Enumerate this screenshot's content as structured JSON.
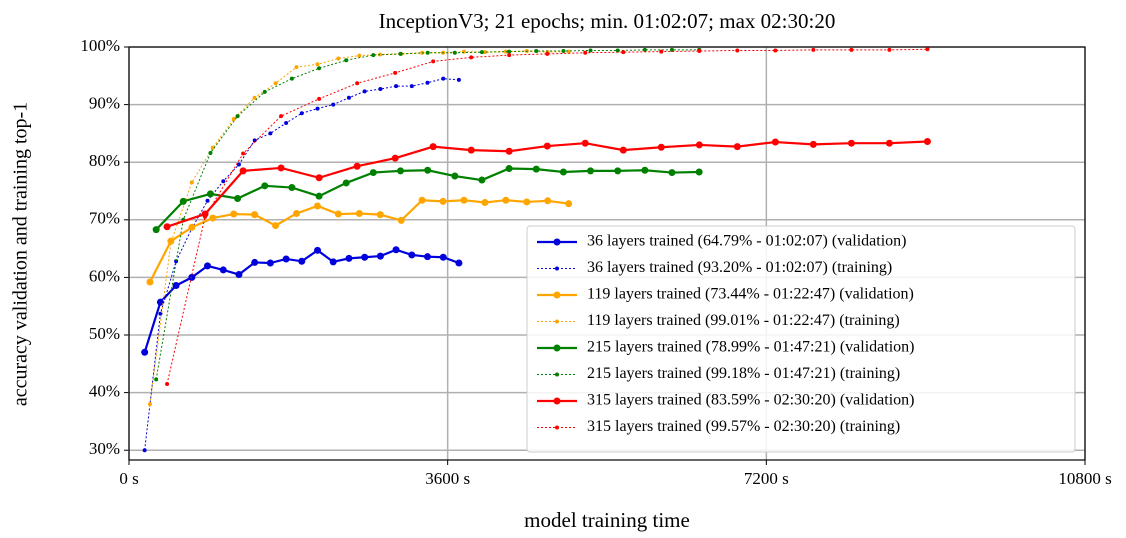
{
  "chart_data": {
    "type": "line",
    "title": "InceptionV3; 21 epochs; min. 01:02:07; max 02:30:20",
    "xlabel": "model training time",
    "ylabel": "accuracy validation and training top-1",
    "xlim": [
      0,
      10800
    ],
    "xticks": [
      {
        "value": 0,
        "label": "0 s"
      },
      {
        "value": 3600,
        "label": "3600 s"
      },
      {
        "value": 7200,
        "label": "7200 s"
      },
      {
        "value": 10800,
        "label": "10800 s"
      }
    ],
    "ylim": [
      28.3,
      100
    ],
    "yticks": [
      {
        "value": 30,
        "label": "30%"
      },
      {
        "value": 40,
        "label": "40%"
      },
      {
        "value": 50,
        "label": "50%"
      },
      {
        "value": 60,
        "label": "60%"
      },
      {
        "value": 70,
        "label": "70%"
      },
      {
        "value": 80,
        "label": "80%"
      },
      {
        "value": 90,
        "label": "90%"
      },
      {
        "value": 100,
        "label": "100%"
      }
    ],
    "grid": true,
    "legend": "lower right",
    "series": [
      {
        "name": "36 layers trained (64.79% - 01:02:07) (validation)",
        "color": "#0000dd",
        "linestyle": "solid",
        "x": [
          177,
          355,
          532,
          710,
          887,
          1065,
          1242,
          1420,
          1597,
          1775,
          1952,
          2130,
          2307,
          2485,
          2662,
          2840,
          3017,
          3195,
          3372,
          3550,
          3727
        ],
        "values": [
          47,
          55.7,
          58.6,
          60,
          62,
          61.3,
          60.5,
          62.6,
          62.5,
          63.2,
          62.8,
          64.7,
          62.7,
          63.3,
          63.5,
          63.7,
          64.8,
          63.9,
          63.6,
          63.5,
          62.5
        ]
      },
      {
        "name": "36 layers trained (93.20% - 01:02:07) (training)",
        "color": "#0000dd",
        "linestyle": "dotted",
        "x": [
          177,
          355,
          532,
          710,
          887,
          1065,
          1242,
          1420,
          1597,
          1775,
          1952,
          2130,
          2307,
          2485,
          2662,
          2840,
          3017,
          3195,
          3372,
          3550,
          3727
        ],
        "values": [
          30,
          53.7,
          62.8,
          68.5,
          73.3,
          76.7,
          79.6,
          83.8,
          85,
          86.8,
          88.5,
          89.3,
          90,
          91.2,
          92.3,
          92.7,
          93.2,
          93.2,
          93.8,
          94.5,
          94.3
        ]
      },
      {
        "name": "119 layers trained (73.44% - 01:22:47) (validation)",
        "color": "#ffa500",
        "linestyle": "solid",
        "x": [
          237,
          473,
          710,
          946,
          1183,
          1419,
          1656,
          1892,
          2129,
          2365,
          2602,
          2838,
          3075,
          3311,
          3548,
          3784,
          4021,
          4257,
          4494,
          4730,
          4967
        ],
        "values": [
          59.2,
          66.3,
          68.7,
          70.3,
          71,
          70.9,
          69,
          71.1,
          72.4,
          71,
          71.1,
          70.9,
          69.9,
          73.4,
          73.2,
          73.4,
          73,
          73.4,
          73.1,
          73.3,
          72.8
        ]
      },
      {
        "name": "119 layers trained (99.01% - 01:22:47) (training)",
        "color": "#ffa500",
        "linestyle": "dotted",
        "x": [
          237,
          473,
          710,
          946,
          1183,
          1419,
          1656,
          1892,
          2129,
          2365,
          2602,
          2838,
          3075,
          3311,
          3548,
          3784,
          4021,
          4257,
          4494,
          4730,
          4967
        ],
        "values": [
          38,
          66,
          76.5,
          82.5,
          87.5,
          91.2,
          93.7,
          96.5,
          97,
          98,
          98.5,
          98.7,
          98.8,
          99,
          99,
          99.2,
          99.1,
          99.2,
          99.3,
          99.1,
          99.2
        ]
      },
      {
        "name": "215 layers trained (78.99% - 01:47:21) (validation)",
        "color": "#008000",
        "linestyle": "solid",
        "x": [
          307,
          613,
          920,
          1227,
          1534,
          1840,
          2147,
          2454,
          2760,
          3067,
          3374,
          3681,
          3987,
          4294,
          4601,
          4908,
          5214,
          5521,
          5828,
          6134,
          6441
        ],
        "values": [
          68.3,
          73.2,
          74.5,
          73.7,
          75.9,
          75.6,
          74.1,
          76.4,
          78.2,
          78.5,
          78.6,
          77.6,
          76.9,
          78.9,
          78.8,
          78.3,
          78.5,
          78.5,
          78.6,
          78.2,
          78.3
        ]
      },
      {
        "name": "215 layers trained (99.18% - 01:47:21) (training)",
        "color": "#008000",
        "linestyle": "dotted",
        "x": [
          307,
          613,
          920,
          1227,
          1534,
          1840,
          2147,
          2454,
          2760,
          3067,
          3374,
          3681,
          3987,
          4294,
          4601,
          4908,
          5214,
          5521,
          5828,
          6134,
          6441
        ],
        "values": [
          42.3,
          70,
          81.6,
          88,
          92.2,
          94.5,
          96.3,
          97.7,
          98.6,
          98.8,
          99,
          99,
          99.1,
          99.2,
          99.3,
          99.3,
          99.4,
          99.4,
          99.5,
          99.5,
          99.5
        ]
      },
      {
        "name": "315 layers trained (83.59% - 02:30:20) (validation)",
        "color": "#ff0000",
        "linestyle": "solid",
        "x": [
          430,
          859,
          1289,
          1718,
          2148,
          2577,
          3007,
          3436,
          3866,
          4295,
          4725,
          5154,
          5584,
          6013,
          6443,
          6872,
          7302,
          7731,
          8161,
          8590,
          9020
        ],
        "values": [
          68.8,
          71,
          78.5,
          79,
          77.3,
          79.3,
          80.7,
          82.7,
          82.1,
          81.9,
          82.8,
          83.3,
          82.1,
          82.6,
          83,
          82.7,
          83.5,
          83.1,
          83.3,
          83.3,
          83.6
        ]
      },
      {
        "name": "315 layers trained (99.57% - 02:30:20) (training)",
        "color": "#ff0000",
        "linestyle": "dotted",
        "x": [
          430,
          859,
          1289,
          1718,
          2148,
          2577,
          3007,
          3436,
          3866,
          4295,
          4725,
          5154,
          5584,
          6013,
          6443,
          6872,
          7302,
          7731,
          8161,
          8590,
          9020
        ],
        "values": [
          41.5,
          70.5,
          81.5,
          88,
          91,
          93.7,
          95.5,
          97.5,
          98.2,
          98.6,
          98.8,
          99,
          99.1,
          99.2,
          99.3,
          99.4,
          99.4,
          99.5,
          99.5,
          99.5,
          99.6
        ]
      }
    ]
  }
}
